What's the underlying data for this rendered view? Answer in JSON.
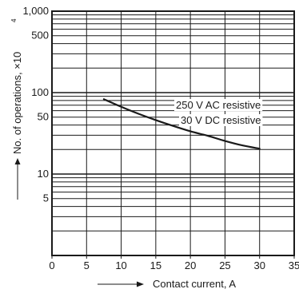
{
  "chart_data": {
    "type": "line",
    "title": "",
    "xlabel": "Contact current, A",
    "ylabel": "No. of operations, ×10",
    "ylabel_exponent": "4",
    "xscale": "linear",
    "yscale": "log",
    "xlim": [
      0,
      35
    ],
    "ylim": [
      1,
      1000
    ],
    "x_ticks": [
      0,
      5,
      10,
      15,
      20,
      25,
      30,
      35
    ],
    "x_tick_labels": [
      "0",
      "5",
      "10",
      "15",
      "20",
      "25",
      "30",
      "35"
    ],
    "y_ticks": [
      5,
      10,
      50,
      100,
      500,
      1000
    ],
    "y_tick_labels": [
      "5",
      "10",
      "50",
      "100",
      "500",
      "1,000"
    ],
    "grid": true,
    "series": [
      {
        "name": "250 V AC resistive / 30 V DC resistive",
        "labels": [
          "250 V AC resistive",
          "30 V DC resistive"
        ],
        "x": [
          7.5,
          10,
          12.5,
          15,
          17.5,
          20,
          22.5,
          25,
          27.5,
          30
        ],
        "y": [
          83,
          67,
          55,
          46,
          39,
          33.5,
          29.5,
          25.5,
          22.5,
          20.5
        ]
      }
    ],
    "colors": {
      "line": "#1a1a1a",
      "grid": "#1a1a1a",
      "background": "#ffffff"
    }
  }
}
